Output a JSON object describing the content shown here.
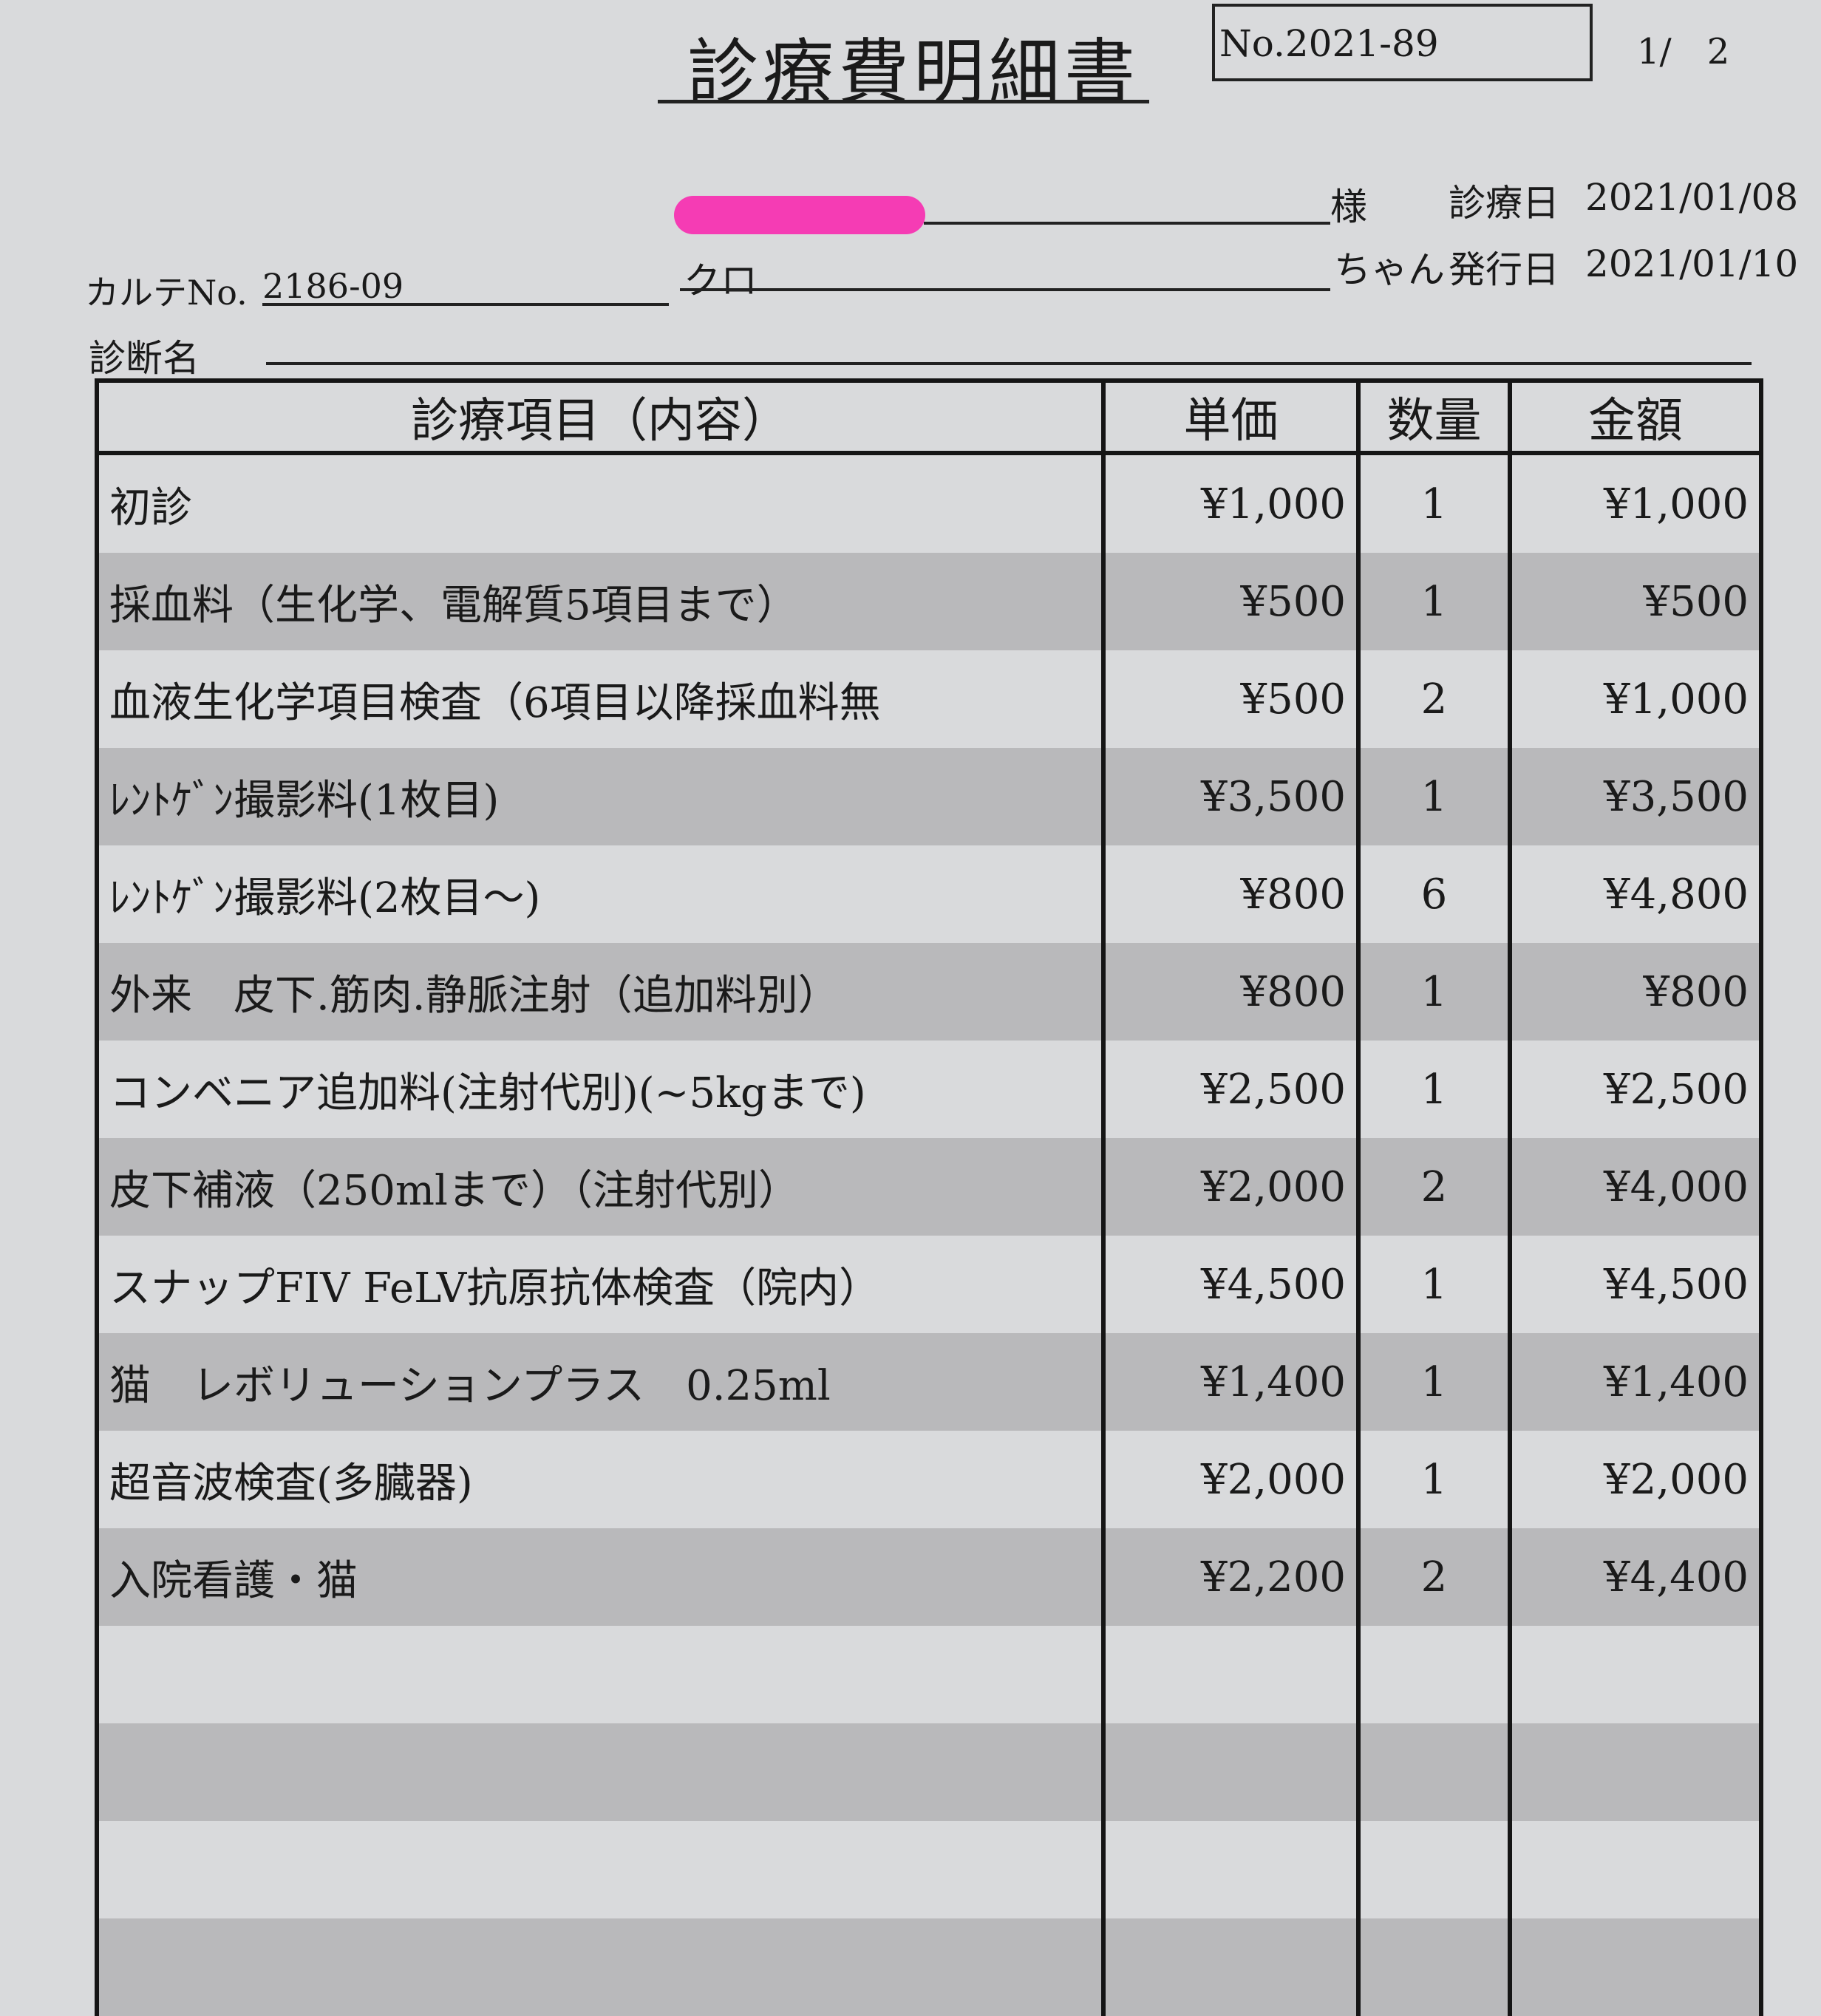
{
  "header": {
    "title": "診療費明細書",
    "doc_no": "No.2021-89",
    "page": "1/　2"
  },
  "info": {
    "honorific": "様",
    "exam_date_label": "診療日",
    "exam_date": "2021/01/08",
    "chart_label": "カルテNo.",
    "chart_no": "2186-09",
    "pet_name": "クロ",
    "pet_suffix": "ちゃん",
    "issue_date_label": "発行日",
    "issue_date": "2021/01/10",
    "diagnosis_label": "診断名",
    "redaction_color": "#f53cb4"
  },
  "table": {
    "headers": [
      "診療項目（内容）",
      "単価",
      "数量",
      "金額"
    ],
    "rows": [
      {
        "item": "初診",
        "price": "¥1,000",
        "qty": "1",
        "amount": "¥1,000"
      },
      {
        "item": "採血料（生化学、電解質5項目まで）",
        "price": "¥500",
        "qty": "1",
        "amount": "¥500"
      },
      {
        "item": "血液生化学項目検査（6項目以降採血料無",
        "price": "¥500",
        "qty": "2",
        "amount": "¥1,000"
      },
      {
        "item": "ﾚﾝﾄｹﾞﾝ撮影料(1枚目)",
        "price": "¥3,500",
        "qty": "1",
        "amount": "¥3,500"
      },
      {
        "item": "ﾚﾝﾄｹﾞﾝ撮影料(2枚目～)",
        "price": "¥800",
        "qty": "6",
        "amount": "¥4,800"
      },
      {
        "item": "外来　皮下.筋肉.静脈注射（追加料別）",
        "price": "¥800",
        "qty": "1",
        "amount": "¥800"
      },
      {
        "item": "コンベニア追加料(注射代別)(~5kgまで)",
        "price": "¥2,500",
        "qty": "1",
        "amount": "¥2,500"
      },
      {
        "item": "皮下補液（250mlまで）（注射代別）",
        "price": "¥2,000",
        "qty": "2",
        "amount": "¥4,000"
      },
      {
        "item": "スナップFIV FeLV抗原抗体検査（院内）",
        "price": "¥4,500",
        "qty": "1",
        "amount": "¥4,500"
      },
      {
        "item": "猫　レボリューションプラス　0.25ml",
        "price": "¥1,400",
        "qty": "1",
        "amount": "¥1,400"
      },
      {
        "item": "超音波検査(多臓器)",
        "price": "¥2,000",
        "qty": "1",
        "amount": "¥2,000"
      },
      {
        "item": "入院看護・猫",
        "price": "¥2,200",
        "qty": "2",
        "amount": "¥4,400"
      }
    ]
  }
}
